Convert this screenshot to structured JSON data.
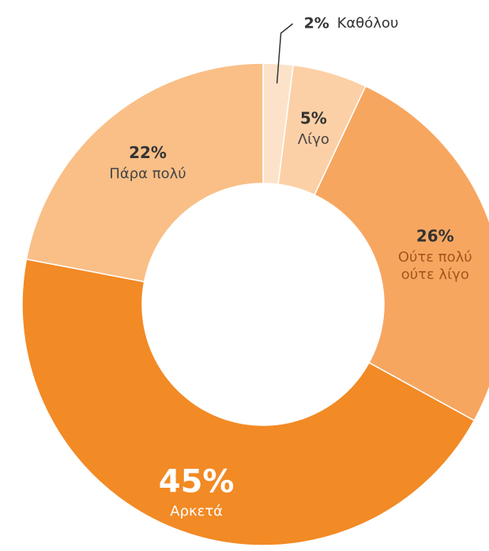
{
  "chart_data": {
    "type": "donut",
    "categories": [
      "Καθόλου",
      "Λίγο",
      "Ούτε πολύ ούτε λίγο",
      "Αρκετά",
      "Πάρα πολύ"
    ],
    "values": [
      2,
      5,
      26,
      45,
      22
    ],
    "value_labels": [
      "2%",
      "5%",
      "26%",
      "45%",
      "22%"
    ],
    "colors": [
      "#fde2ca",
      "#fcd0a6",
      "#f7a660",
      "#f28a25",
      "#f9bf87"
    ]
  }
}
